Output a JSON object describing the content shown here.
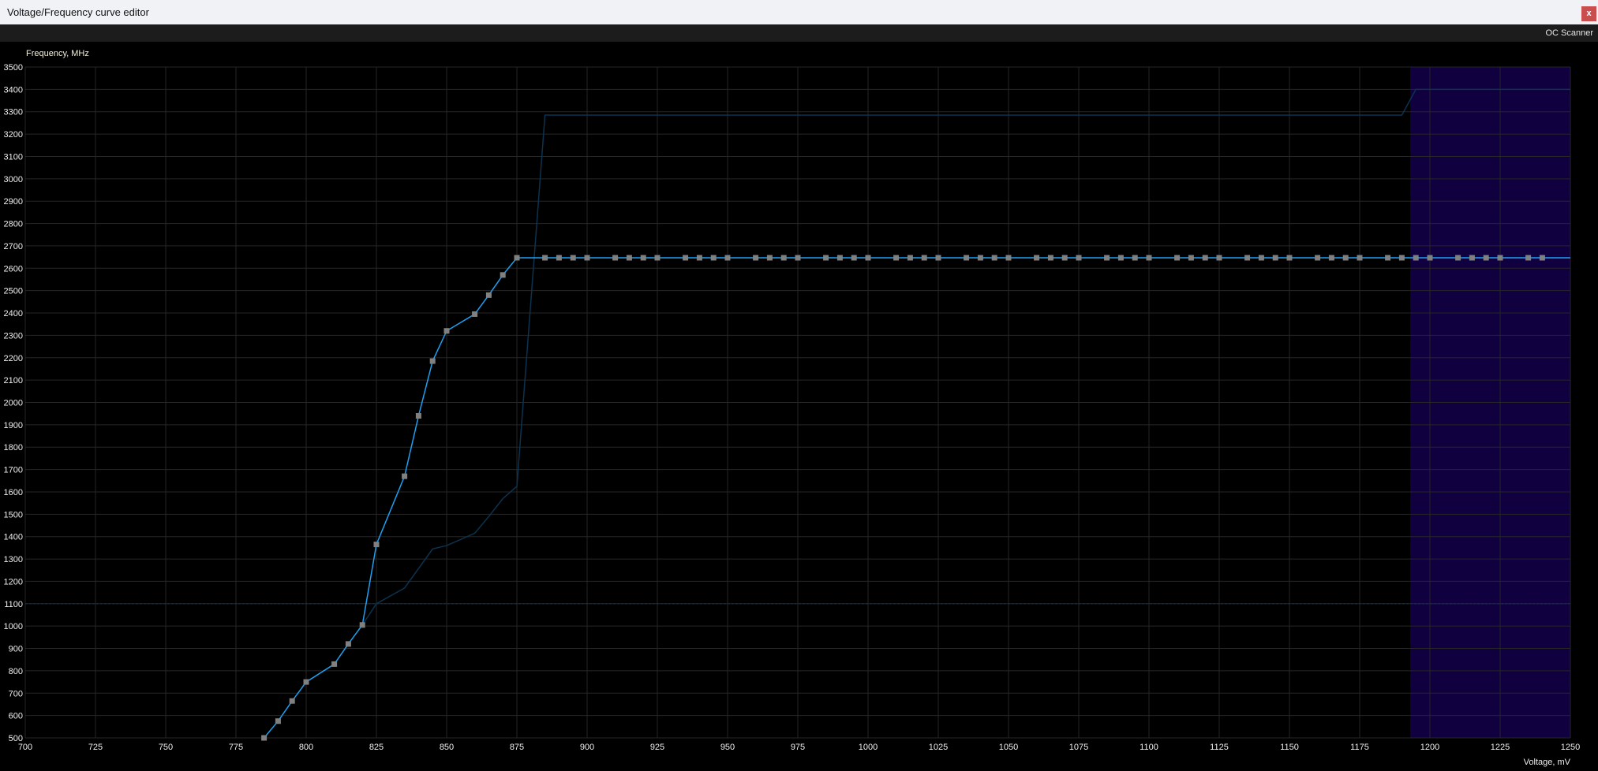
{
  "window": {
    "title": "Voltage/Frequency curve editor",
    "close_label": "x"
  },
  "toolbar": {
    "oc_scanner_label": "OC Scanner"
  },
  "colors": {
    "background": "#000000",
    "grid": "#262626",
    "curve": "#1ea0f0",
    "point": "#808080",
    "reference_curve": "#0b3350",
    "highlight": "#10003f"
  },
  "chart_data": {
    "type": "line",
    "title": "",
    "xlabel": "Voltage, mV",
    "ylabel": "Frequency, MHz",
    "xlim": [
      700,
      1250
    ],
    "ylim": [
      500,
      3500
    ],
    "grid": true,
    "x_ticks": [
      700,
      725,
      750,
      775,
      800,
      825,
      850,
      875,
      900,
      925,
      950,
      975,
      1000,
      1025,
      1050,
      1075,
      1100,
      1125,
      1150,
      1175,
      1200,
      1225,
      1250
    ],
    "y_ticks": [
      500,
      600,
      700,
      800,
      900,
      1000,
      1100,
      1200,
      1300,
      1400,
      1500,
      1600,
      1700,
      1800,
      1900,
      2000,
      2100,
      2200,
      2300,
      2400,
      2500,
      2600,
      2700,
      2800,
      2900,
      3000,
      3100,
      3200,
      3300,
      3400,
      3500
    ],
    "highlight_region": {
      "x_from": 1193,
      "x_to": 1250
    },
    "guide_line_y": 1100,
    "series": [
      {
        "role": "edited-curve",
        "points": [
          [
            785,
            500
          ],
          [
            790,
            575
          ],
          [
            795,
            665
          ],
          [
            800,
            750
          ],
          [
            810,
            830
          ],
          [
            815,
            920
          ],
          [
            820,
            1005
          ],
          [
            825,
            1365
          ],
          [
            835,
            1670
          ],
          [
            840,
            1940
          ],
          [
            845,
            2185
          ],
          [
            850,
            2320
          ],
          [
            860,
            2395
          ],
          [
            865,
            2480
          ],
          [
            870,
            2570
          ],
          [
            875,
            2647
          ],
          [
            885,
            2647
          ],
          [
            890,
            2647
          ],
          [
            895,
            2647
          ],
          [
            900,
            2647
          ],
          [
            910,
            2647
          ],
          [
            915,
            2647
          ],
          [
            920,
            2647
          ],
          [
            925,
            2647
          ],
          [
            935,
            2647
          ],
          [
            940,
            2647
          ],
          [
            945,
            2647
          ],
          [
            950,
            2647
          ],
          [
            960,
            2647
          ],
          [
            965,
            2647
          ],
          [
            970,
            2647
          ],
          [
            975,
            2647
          ],
          [
            985,
            2647
          ],
          [
            990,
            2647
          ],
          [
            995,
            2647
          ],
          [
            1000,
            2647
          ],
          [
            1010,
            2647
          ],
          [
            1015,
            2647
          ],
          [
            1020,
            2647
          ],
          [
            1025,
            2647
          ],
          [
            1035,
            2647
          ],
          [
            1040,
            2647
          ],
          [
            1045,
            2647
          ],
          [
            1050,
            2647
          ],
          [
            1060,
            2647
          ],
          [
            1065,
            2647
          ],
          [
            1070,
            2647
          ],
          [
            1075,
            2647
          ],
          [
            1085,
            2647
          ],
          [
            1090,
            2647
          ],
          [
            1095,
            2647
          ],
          [
            1100,
            2647
          ],
          [
            1110,
            2647
          ],
          [
            1115,
            2647
          ],
          [
            1120,
            2647
          ],
          [
            1125,
            2647
          ],
          [
            1135,
            2647
          ],
          [
            1140,
            2647
          ],
          [
            1145,
            2647
          ],
          [
            1150,
            2647
          ],
          [
            1160,
            2647
          ],
          [
            1165,
            2647
          ],
          [
            1170,
            2647
          ],
          [
            1175,
            2647
          ],
          [
            1185,
            2647
          ],
          [
            1190,
            2647
          ],
          [
            1195,
            2647
          ],
          [
            1200,
            2647
          ],
          [
            1210,
            2647
          ],
          [
            1215,
            2647
          ],
          [
            1220,
            2647
          ],
          [
            1225,
            2647
          ],
          [
            1235,
            2647
          ],
          [
            1240,
            2647
          ]
        ],
        "line_end": [
          1250,
          2647
        ]
      },
      {
        "role": "reference-curve",
        "points": [
          [
            820,
            1005
          ],
          [
            825,
            1100
          ],
          [
            835,
            1170
          ],
          [
            845,
            1345
          ],
          [
            850,
            1360
          ],
          [
            860,
            1415
          ],
          [
            865,
            1490
          ],
          [
            870,
            1570
          ],
          [
            875,
            1625
          ],
          [
            885,
            3285
          ],
          [
            1190,
            3285
          ],
          [
            1195,
            3400
          ],
          [
            1250,
            3400
          ]
        ]
      }
    ]
  }
}
